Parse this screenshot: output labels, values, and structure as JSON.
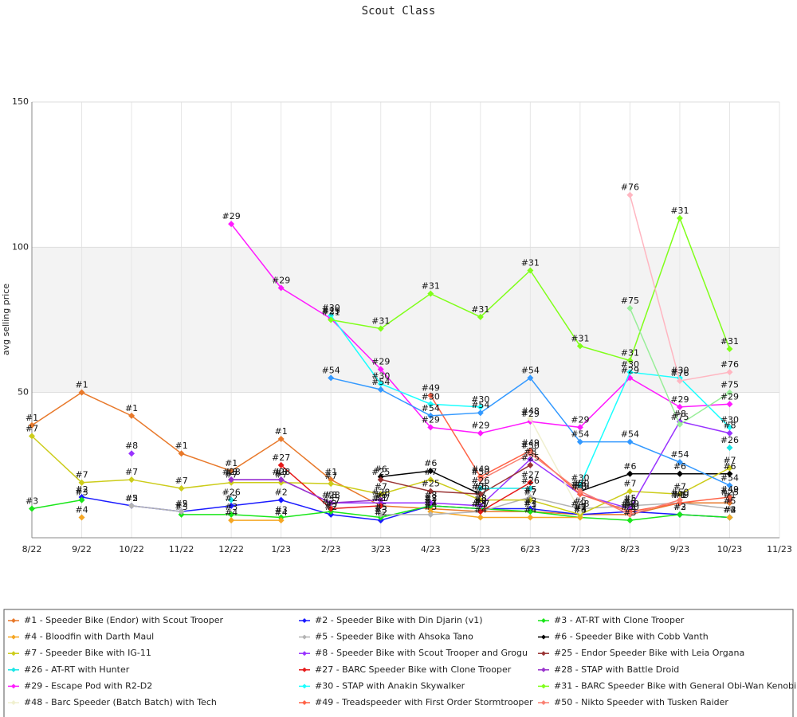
{
  "chart_data": {
    "type": "line",
    "title": "Scout Class",
    "y_label": "avg selling price",
    "categories": [
      "8/22",
      "9/22",
      "10/22",
      "11/22",
      "12/22",
      "1/23",
      "2/23",
      "3/23",
      "4/23",
      "5/23",
      "6/23",
      "7/23",
      "8/23",
      "9/23",
      "10/23",
      "11/23"
    ],
    "ylim": [
      0,
      150
    ],
    "yticks": [
      50,
      100,
      150
    ],
    "grid": true,
    "series": [
      {
        "label": "#1",
        "name": "#1 - Speeder Bike (Endor) with Scout Trooper",
        "color": "#e8792b",
        "values": [
          38.7,
          50,
          42,
          29,
          23,
          34,
          20,
          11,
          10,
          9,
          9,
          8,
          8,
          12,
          12,
          null
        ]
      },
      {
        "label": "#2",
        "name": "#2 - Speeder Bike with Din Djarin (v1)",
        "color": "#1a1aff",
        "values": [
          null,
          14,
          11,
          9,
          11,
          13,
          8,
          6,
          11,
          10,
          10,
          8,
          9,
          8,
          7,
          null
        ]
      },
      {
        "label": "#3",
        "name": "#3 - AT-RT with Clone Trooper",
        "color": "#19e619",
        "values": [
          10,
          13,
          null,
          8,
          8,
          7,
          9,
          7,
          11,
          10,
          9,
          7,
          6,
          8,
          7,
          null
        ]
      },
      {
        "label": "#4",
        "name": "#4 - Bloodfin with Darth Maul",
        "color": "#f5a623",
        "values": [
          null,
          7,
          null,
          null,
          6,
          6,
          null,
          null,
          9,
          7,
          7,
          7,
          null,
          null,
          7,
          null
        ]
      },
      {
        "label": "#5",
        "name": "#5 - Speeder Bike with Ahsoka Tano",
        "color": "#b3b3b3",
        "values": [
          null,
          null,
          11,
          9,
          null,
          null,
          null,
          8,
          8,
          9,
          14,
          10,
          11,
          12,
          10,
          null
        ]
      },
      {
        "label": "#6",
        "name": "#6 - Speeder Bike with Cobb Vanth",
        "color": "#000000",
        "values": [
          null,
          null,
          null,
          null,
          null,
          null,
          null,
          21,
          23,
          15,
          null,
          16,
          22,
          22,
          22,
          null
        ]
      },
      {
        "label": "#7",
        "name": "#7 - Speeder Bike with IG-11",
        "color": "#cccc1a",
        "values": [
          35,
          19,
          20,
          17,
          19,
          19,
          18.6,
          15,
          20,
          13,
          13,
          8,
          16,
          15,
          24,
          null
        ]
      },
      {
        "label": "#8",
        "name": "#8 - Speeder Bike with Scout Trooper and Grogu",
        "color": "#9933ff",
        "values": [
          null,
          null,
          29,
          null,
          20,
          20,
          12,
          12,
          12,
          11,
          27,
          15,
          10,
          40,
          36,
          null
        ]
      },
      {
        "label": "#25",
        "name": "#25 - Endor Speeder Bike with Leia Organa",
        "color": "#993333",
        "values": [
          null,
          null,
          null,
          null,
          null,
          null,
          null,
          20,
          16,
          15,
          25,
          null,
          null,
          null,
          13,
          null
        ]
      },
      {
        "label": "#26",
        "name": "#26 - AT-RT with Hunter",
        "color": "#1ae6e6",
        "values": [
          null,
          null,
          null,
          null,
          13,
          null,
          null,
          null,
          null,
          17,
          17,
          null,
          null,
          null,
          31,
          null
        ]
      },
      {
        "label": "#27",
        "name": "#27 - BARC Speeder Bike with Clone Trooper",
        "color": "#e61a1a",
        "values": [
          null,
          null,
          null,
          null,
          null,
          25,
          10,
          11,
          null,
          9,
          19,
          null,
          null,
          null,
          null,
          null
        ]
      },
      {
        "label": "#28",
        "name": "#28 - STAP with Battle Droid",
        "color": "#9933cc",
        "values": [
          null,
          null,
          null,
          null,
          20,
          20,
          12,
          13,
          null,
          null,
          null,
          null,
          null,
          null,
          null,
          null
        ]
      },
      {
        "label": "#29",
        "name": "#29 - Escape Pod with R2-D2",
        "color": "#ff1aff",
        "values": [
          null,
          null,
          null,
          null,
          108,
          86,
          75.4,
          58,
          38,
          36,
          40,
          38,
          55,
          45,
          46,
          null
        ]
      },
      {
        "label": "#30",
        "name": "#30 - STAP with Anakin Skywalker",
        "color": "#1affff",
        "values": [
          null,
          null,
          null,
          null,
          null,
          null,
          76.5,
          53,
          46,
          45,
          null,
          18,
          57,
          55,
          38,
          null
        ]
      },
      {
        "label": "#31",
        "name": "#31 - BARC Speeder Bike with General Obi-Wan Kenobi",
        "color": "#80ff1a",
        "values": [
          null,
          null,
          null,
          null,
          null,
          null,
          75,
          72,
          84,
          76,
          92,
          66,
          61,
          110,
          65,
          null
        ]
      },
      {
        "label": "#48",
        "name": "#48 - Barc Speeder (Batch Batch) with Tech",
        "color": "#f0f0d0",
        "values": [
          null,
          null,
          null,
          null,
          null,
          null,
          null,
          null,
          null,
          null,
          41,
          9,
          null,
          null,
          null,
          null
        ]
      },
      {
        "label": "#49",
        "name": "#49 - Treadspeeder with First Order Stormtrooper",
        "color": "#ff6347",
        "values": [
          null,
          null,
          null,
          null,
          null,
          null,
          null,
          null,
          49,
          21,
          30,
          15,
          9,
          12,
          14,
          null
        ]
      },
      {
        "label": "#50",
        "name": "#50 - Nikto Speeder with Tusken Raider",
        "color": "#fa8072",
        "values": [
          null,
          null,
          null,
          null,
          null,
          null,
          null,
          null,
          null,
          20,
          29,
          16,
          8,
          13,
          null,
          null
        ]
      },
      {
        "label": "#54",
        "color": "#3399ff",
        "values": [
          null,
          null,
          null,
          null,
          null,
          null,
          55,
          51,
          42,
          43,
          55,
          33,
          33,
          26,
          18,
          null
        ]
      },
      {
        "label": "#75",
        "color": "#99ee99",
        "values": [
          null,
          null,
          null,
          null,
          null,
          null,
          null,
          null,
          null,
          null,
          null,
          null,
          79,
          39,
          50,
          null
        ]
      },
      {
        "label": "#76",
        "color": "#ffb6c1",
        "values": [
          null,
          null,
          null,
          null,
          null,
          null,
          null,
          null,
          null,
          null,
          null,
          null,
          118,
          54,
          57,
          null
        ]
      }
    ]
  }
}
